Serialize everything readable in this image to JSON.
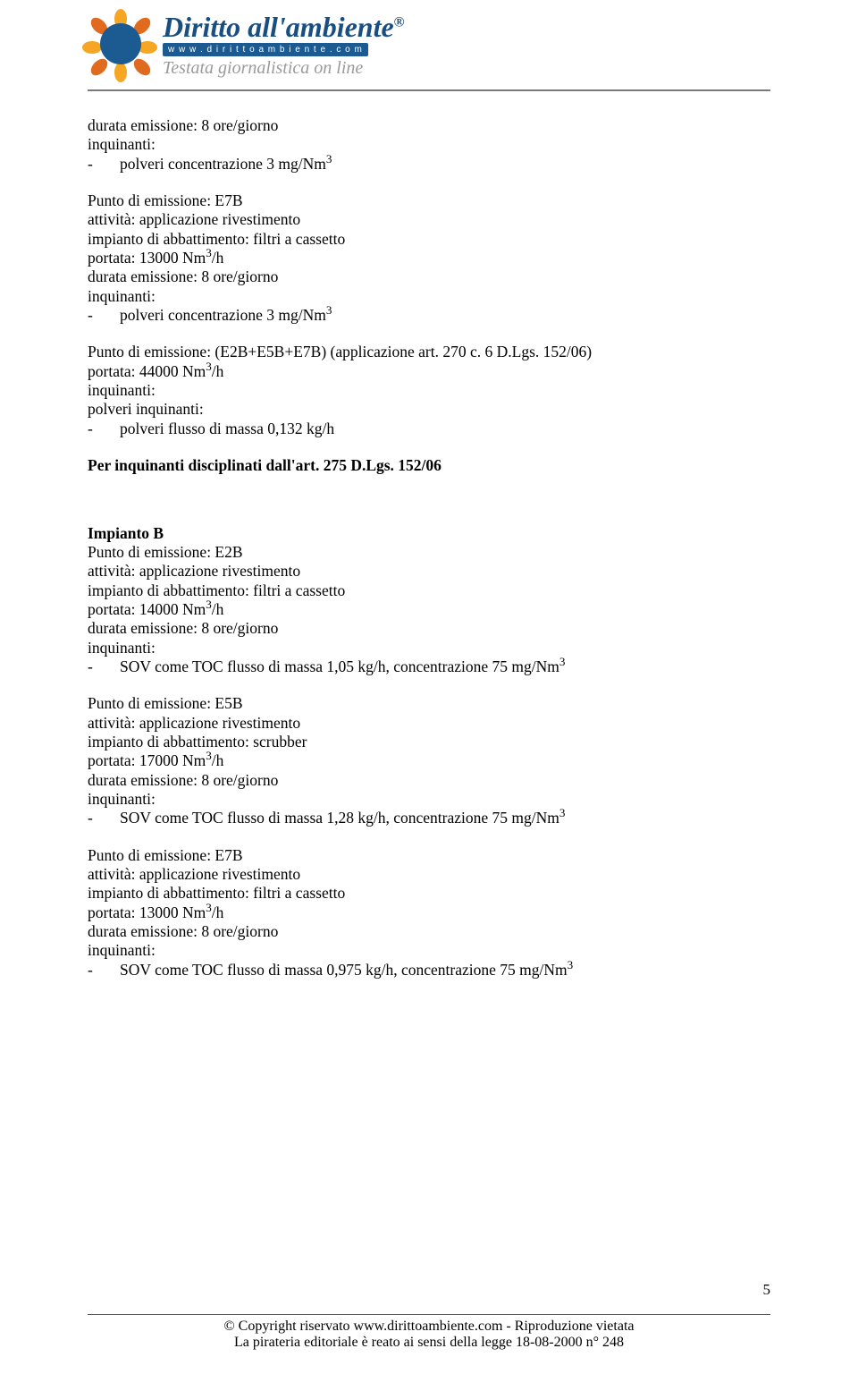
{
  "logo": {
    "title_html": "Diritto all'ambiente",
    "url": "w w w . d i r i t t o a m b i e n t e . c o m",
    "subtitle": "Testata giornalistica on line"
  },
  "blocks": [
    {
      "type": "group",
      "lines": [
        {
          "t": "durata emissione: 8 ore/giorno"
        },
        {
          "t": "inquinanti:"
        },
        {
          "t": "polveri concentrazione 3 mg/Nm",
          "sup": "3",
          "bullet": true
        }
      ]
    },
    {
      "type": "group",
      "lines": [
        {
          "t": "Punto di emissione: E7B"
        },
        {
          "t": "attività: applicazione rivestimento"
        },
        {
          "t": "impianto di abbattimento: filtri a cassetto"
        },
        {
          "t": "portata: 13000 Nm",
          "sup": "3",
          "after": "/h"
        },
        {
          "t": "durata emissione: 8 ore/giorno"
        },
        {
          "t": "inquinanti:"
        },
        {
          "t": "polveri concentrazione 3 mg/Nm",
          "sup": "3",
          "bullet": true
        }
      ]
    },
    {
      "type": "group",
      "lines": [
        {
          "t": "Punto di emissione: (E2B+E5B+E7B) (applicazione art. 270 c. 6 D.Lgs. 152/06)"
        },
        {
          "t": "portata: 44000 Nm",
          "sup": "3",
          "after": "/h"
        },
        {
          "t": "inquinanti:"
        },
        {
          "t": "polveri inquinanti:"
        },
        {
          "t": "polveri flusso di massa 0,132 kg/h",
          "bullet": true
        }
      ]
    },
    {
      "type": "single",
      "bold": true,
      "t": "Per inquinanti disciplinati dall'art. 275 D.Lgs. 152/06"
    },
    {
      "type": "gap"
    },
    {
      "type": "group",
      "lines": [
        {
          "t": "Impianto B",
          "bold": true
        },
        {
          "t": "Punto di emissione: E2B"
        },
        {
          "t": "attività: applicazione rivestimento"
        },
        {
          "t": "impianto di abbattimento: filtri a cassetto"
        },
        {
          "t": "portata: 14000 Nm",
          "sup": "3",
          "after": "/h"
        },
        {
          "t": "durata emissione: 8 ore/giorno"
        },
        {
          "t": "inquinanti:"
        },
        {
          "t": "SOV come TOC flusso di massa 1,05 kg/h, concentrazione 75 mg/Nm",
          "sup": "3",
          "bullet": true
        }
      ]
    },
    {
      "type": "group",
      "lines": [
        {
          "t": "Punto di emissione: E5B"
        },
        {
          "t": "attività: applicazione rivestimento"
        },
        {
          "t": "impianto di abbattimento: scrubber"
        },
        {
          "t": "portata: 17000 Nm",
          "sup": "3",
          "after": "/h"
        },
        {
          "t": "durata emissione: 8 ore/giorno"
        },
        {
          "t": "inquinanti:"
        },
        {
          "t": "SOV come TOC flusso di massa 1,28 kg/h, concentrazione 75 mg/Nm",
          "sup": "3",
          "bullet": true
        }
      ]
    },
    {
      "type": "group",
      "lines": [
        {
          "t": "Punto di emissione: E7B"
        },
        {
          "t": "attività: applicazione rivestimento"
        },
        {
          "t": "impianto di abbattimento: filtri a cassetto"
        },
        {
          "t": "portata: 13000 Nm",
          "sup": "3",
          "after": "/h"
        },
        {
          "t": "durata emissione: 8 ore/giorno"
        },
        {
          "t": "inquinanti:"
        },
        {
          "t": "SOV come TOC flusso di massa 0,975 kg/h, concentrazione 75 mg/Nm",
          "sup": "3",
          "bullet": true
        }
      ]
    }
  ],
  "page_number": "5",
  "footer": {
    "line1": "© Copyright riservato www.dirittoambiente.com -   Riproduzione vietata",
    "line2": "La pirateria editoriale è reato ai sensi della legge 18-08-2000 n° 248"
  }
}
